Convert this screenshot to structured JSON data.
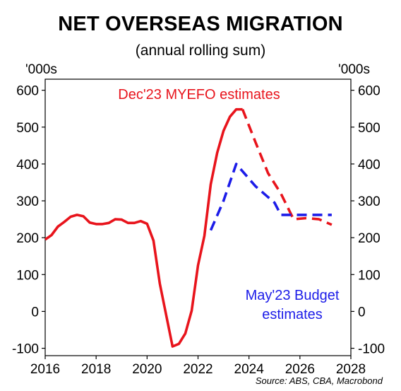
{
  "chart_data": {
    "type": "line",
    "title": "NET OVERSEAS MIGRATION",
    "subtitle": "(annual rolling sum)",
    "ylabel_left": "'000s",
    "ylabel_right": "'000s",
    "source": "Source: ABS, CBA, Macrobond",
    "xlim": [
      2016,
      2028
    ],
    "ylim": [
      -120,
      630
    ],
    "x_ticks": [
      2016,
      2018,
      2020,
      2022,
      2024,
      2026,
      2028
    ],
    "y_ticks": [
      -100,
      0,
      100,
      200,
      300,
      400,
      500,
      600
    ],
    "grid": false,
    "series": [
      {
        "name": "Dec'23 MYEFO estimates",
        "color": "#e8141c",
        "style": "solid",
        "x": [
          2016.0,
          2016.25,
          2016.5,
          2016.75,
          2017.0,
          2017.25,
          2017.5,
          2017.75,
          2018.0,
          2018.25,
          2018.5,
          2018.75,
          2019.0,
          2019.25,
          2019.5,
          2019.75,
          2020.0,
          2020.25,
          2020.5,
          2020.75,
          2021.0,
          2021.25,
          2021.5,
          2021.75,
          2022.0,
          2022.25,
          2022.5,
          2022.75,
          2023.0,
          2023.25,
          2023.5,
          2023.75
        ],
        "y": [
          195,
          207,
          230,
          243,
          257,
          262,
          258,
          241,
          237,
          237,
          240,
          250,
          249,
          240,
          240,
          245,
          238,
          192,
          75,
          -10,
          -95,
          -88,
          -60,
          2,
          125,
          205,
          345,
          430,
          490,
          528,
          548,
          548
        ]
      },
      {
        "name": "Dec'23 MYEFO estimates",
        "color": "#e8141c",
        "style": "dashed",
        "x": [
          2023.75,
          2024.25,
          2024.75,
          2025.25,
          2025.75,
          2026.25,
          2026.75,
          2027.25
        ],
        "y": [
          548,
          460,
          375,
          320,
          250,
          253,
          250,
          235
        ]
      },
      {
        "name": "May'23 Budget estimates",
        "color": "#1c1ce8",
        "style": "dashed",
        "x": [
          2022.5,
          2022.75,
          2023.0,
          2023.25,
          2023.5,
          2023.75,
          2024.0,
          2024.25,
          2024.5,
          2024.75,
          2025.0,
          2025.25,
          2025.75,
          2026.25,
          2026.75,
          2027.25
        ],
        "y": [
          220,
          260,
          300,
          350,
          400,
          380,
          360,
          340,
          325,
          310,
          295,
          262,
          262,
          262,
          262,
          262
        ]
      }
    ],
    "annotations": [
      {
        "text": "Dec'23 MYEFO estimates",
        "color": "#e8141c"
      },
      {
        "text": "May'23 Budget",
        "color": "#1c1ce8"
      },
      {
        "text": "estimates",
        "color": "#1c1ce8"
      }
    ]
  }
}
